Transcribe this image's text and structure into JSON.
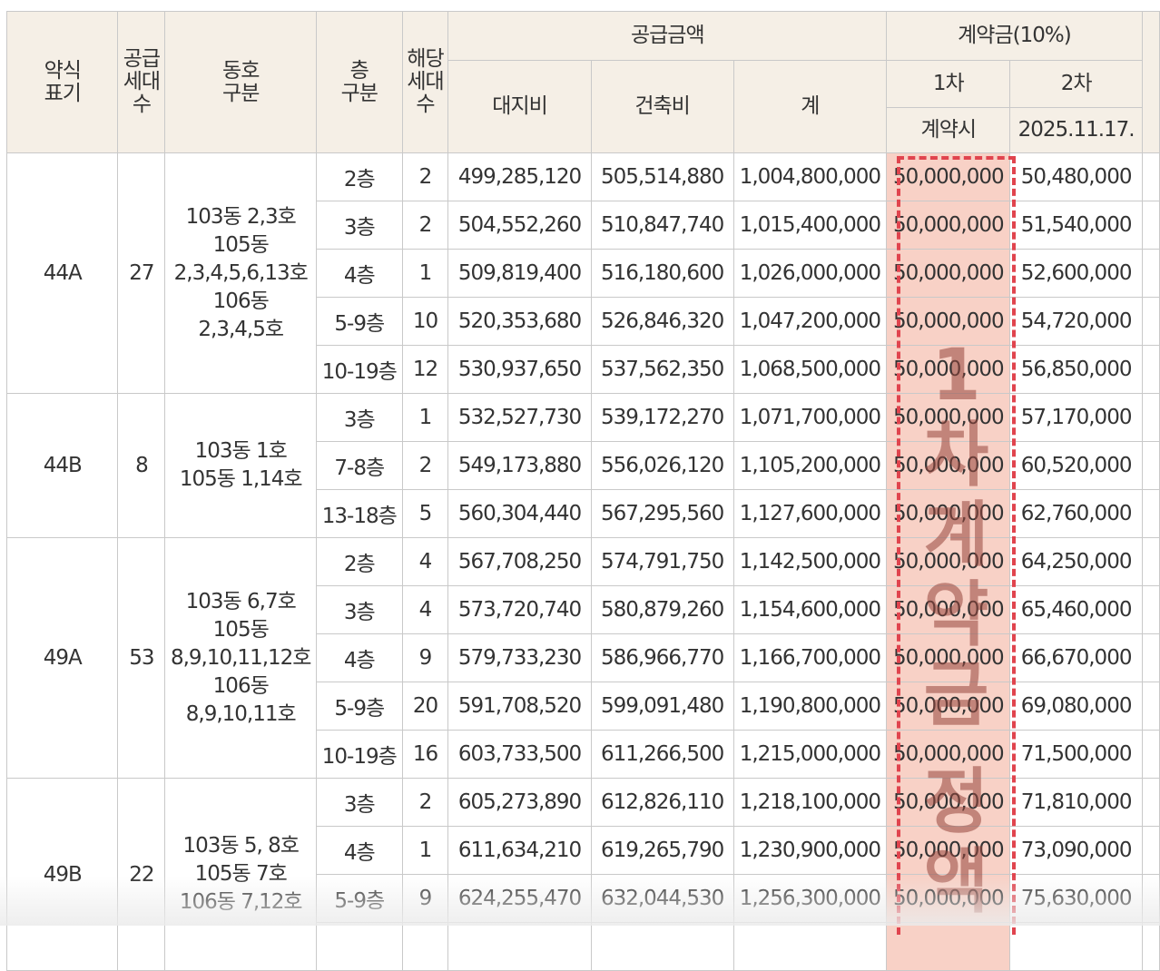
{
  "header": {
    "abbr": [
      "약식",
      "표기"
    ],
    "supply_units": [
      "공급",
      "세대",
      "수"
    ],
    "building_unit": [
      "동호",
      "구분"
    ],
    "floor": [
      "층",
      "구분"
    ],
    "units": [
      "해당",
      "세대",
      "수"
    ],
    "supply_amount": "공급금액",
    "land": "대지비",
    "building": "건축비",
    "total": "계",
    "deposit": "계약금(10%)",
    "first": "1차",
    "second": "2차",
    "first_date": "계약시",
    "second_date": "2025.11.17."
  },
  "groups": [
    {
      "type": "44A",
      "supply": "27",
      "units_desc": [
        "103동 2,3호",
        "105동",
        "2,3,4,5,6,13호",
        "106동",
        "2,3,4,5호"
      ],
      "rows": [
        {
          "floor": "2층",
          "count": "2",
          "land": "499,285,120",
          "building": "505,514,880",
          "total": "1,004,800,000",
          "first": "50,000,000",
          "second": "50,480,000"
        },
        {
          "floor": "3층",
          "count": "2",
          "land": "504,552,260",
          "building": "510,847,740",
          "total": "1,015,400,000",
          "first": "50,000,000",
          "second": "51,540,000"
        },
        {
          "floor": "4층",
          "count": "1",
          "land": "509,819,400",
          "building": "516,180,600",
          "total": "1,026,000,000",
          "first": "50,000,000",
          "second": "52,600,000"
        },
        {
          "floor": "5-9층",
          "count": "10",
          "land": "520,353,680",
          "building": "526,846,320",
          "total": "1,047,200,000",
          "first": "50,000,000",
          "second": "54,720,000"
        },
        {
          "floor": "10-19층",
          "count": "12",
          "land": "530,937,650",
          "building": "537,562,350",
          "total": "1,068,500,000",
          "first": "50,000,000",
          "second": "56,850,000"
        }
      ]
    },
    {
      "type": "44B",
      "supply": "8",
      "units_desc": [
        "103동 1호",
        "105동 1,14호"
      ],
      "rows": [
        {
          "floor": "3층",
          "count": "1",
          "land": "532,527,730",
          "building": "539,172,270",
          "total": "1,071,700,000",
          "first": "50,000,000",
          "second": "57,170,000"
        },
        {
          "floor": "7-8층",
          "count": "2",
          "land": "549,173,880",
          "building": "556,026,120",
          "total": "1,105,200,000",
          "first": "50,000,000",
          "second": "60,520,000"
        },
        {
          "floor": "13-18층",
          "count": "5",
          "land": "560,304,440",
          "building": "567,295,560",
          "total": "1,127,600,000",
          "first": "50,000,000",
          "second": "62,760,000"
        }
      ]
    },
    {
      "type": "49A",
      "supply": "53",
      "units_desc": [
        "103동 6,7호",
        "105동",
        "8,9,10,11,12호",
        "106동",
        "8,9,10,11호"
      ],
      "rows": [
        {
          "floor": "2층",
          "count": "4",
          "land": "567,708,250",
          "building": "574,791,750",
          "total": "1,142,500,000",
          "first": "50,000,000",
          "second": "64,250,000"
        },
        {
          "floor": "3층",
          "count": "4",
          "land": "573,720,740",
          "building": "580,879,260",
          "total": "1,154,600,000",
          "first": "50,000,000",
          "second": "65,460,000"
        },
        {
          "floor": "4층",
          "count": "9",
          "land": "579,733,230",
          "building": "586,966,770",
          "total": "1,166,700,000",
          "first": "50,000,000",
          "second": "66,670,000"
        },
        {
          "floor": "5-9층",
          "count": "20",
          "land": "591,708,520",
          "building": "599,091,480",
          "total": "1,190,800,000",
          "first": "50,000,000",
          "second": "69,080,000"
        },
        {
          "floor": "10-19층",
          "count": "16",
          "land": "603,733,500",
          "building": "611,266,500",
          "total": "1,215,000,000",
          "first": "50,000,000",
          "second": "71,500,000"
        }
      ]
    },
    {
      "type": "49B",
      "supply": "22",
      "units_desc": [
        "103동 5, 8호",
        "105동 7호",
        "106동 7,12호"
      ],
      "rows": [
        {
          "floor": "3층",
          "count": "2",
          "land": "605,273,890",
          "building": "612,826,110",
          "total": "1,218,100,000",
          "first": "50,000,000",
          "second": "71,810,000"
        },
        {
          "floor": "4층",
          "count": "1",
          "land": "611,634,210",
          "building": "619,265,790",
          "total": "1,230,900,000",
          "first": "50,000,000",
          "second": "73,090,000"
        },
        {
          "floor": "5-9층",
          "count": "9",
          "land": "624,255,470",
          "building": "632,044,530",
          "total": "1,256,300,000",
          "first": "50,000,000",
          "second": "75,630,000"
        },
        {
          "floor": "",
          "count": "",
          "land": "",
          "building": "",
          "total": "",
          "first": "",
          "second": ""
        }
      ]
    }
  ],
  "overlay_text": [
    "1",
    "차",
    "계",
    "약",
    "금",
    "정",
    "액"
  ],
  "colors": {
    "header_bg": "#f5efe6",
    "highlight_bg": "#f8d1c6",
    "highlight_border": "#e0444e"
  }
}
